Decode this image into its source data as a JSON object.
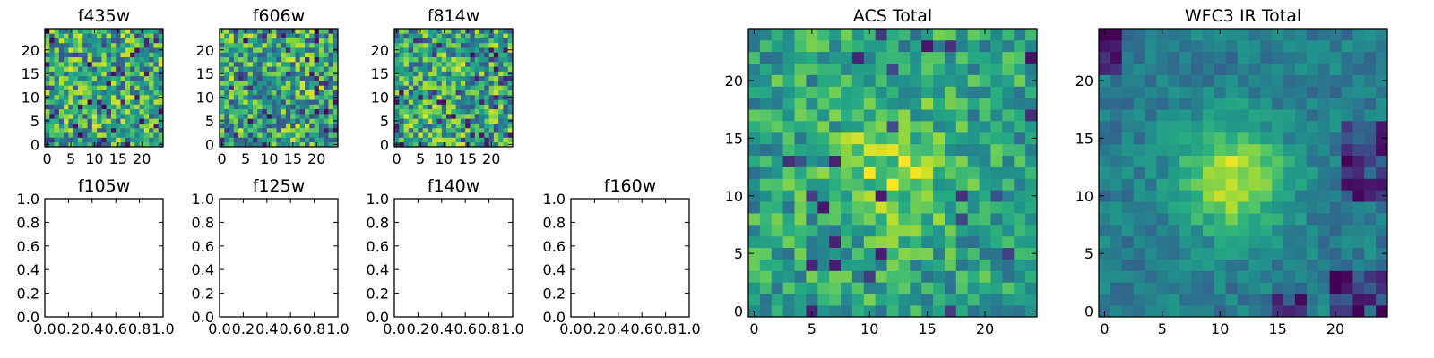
{
  "chart_data": [
    {
      "type": "heatmap",
      "title": "f435w",
      "xticks": [
        "0",
        "5",
        "10",
        "15",
        "20"
      ],
      "yticks": [
        "0",
        "5",
        "10",
        "15",
        "20"
      ],
      "xlim": [
        -0.5,
        24.5
      ],
      "ylim": [
        -0.5,
        24.5
      ],
      "grid_size": 25,
      "colormap": "viridis",
      "value_range": [
        0,
        1
      ],
      "character": "noisy",
      "seed": 11
    },
    {
      "type": "heatmap",
      "title": "f606w",
      "xticks": [
        "0",
        "5",
        "10",
        "15",
        "20"
      ],
      "yticks": [
        "0",
        "5",
        "10",
        "15",
        "20"
      ],
      "xlim": [
        -0.5,
        24.5
      ],
      "ylim": [
        -0.5,
        24.5
      ],
      "grid_size": 25,
      "colormap": "viridis",
      "value_range": [
        0,
        1
      ],
      "character": "noisy",
      "seed": 23
    },
    {
      "type": "heatmap",
      "title": "f814w",
      "xticks": [
        "0",
        "5",
        "10",
        "15",
        "20"
      ],
      "yticks": [
        "0",
        "5",
        "10",
        "15",
        "20"
      ],
      "xlim": [
        -0.5,
        24.5
      ],
      "ylim": [
        -0.5,
        24.5
      ],
      "grid_size": 25,
      "colormap": "viridis",
      "value_range": [
        0,
        1
      ],
      "character": "noisy",
      "seed": 37
    },
    {
      "type": "line",
      "title": "f105w",
      "xticks": [
        "0.0",
        "0.2",
        "0.4",
        "0.6",
        "0.8",
        "1.0"
      ],
      "yticks": [
        "0.0",
        "0.2",
        "0.4",
        "0.6",
        "0.8",
        "1.0"
      ],
      "xlim": [
        0,
        1
      ],
      "ylim": [
        0,
        1
      ],
      "series": []
    },
    {
      "type": "line",
      "title": "f125w",
      "xticks": [
        "0.0",
        "0.2",
        "0.4",
        "0.6",
        "0.8",
        "1.0"
      ],
      "yticks": [
        "0.0",
        "0.2",
        "0.4",
        "0.6",
        "0.8",
        "1.0"
      ],
      "xlim": [
        0,
        1
      ],
      "ylim": [
        0,
        1
      ],
      "series": []
    },
    {
      "type": "line",
      "title": "f140w",
      "xticks": [
        "0.0",
        "0.2",
        "0.4",
        "0.6",
        "0.8",
        "1.0"
      ],
      "yticks": [
        "0.0",
        "0.2",
        "0.4",
        "0.6",
        "0.8",
        "1.0"
      ],
      "xlim": [
        0,
        1
      ],
      "ylim": [
        0,
        1
      ],
      "series": []
    },
    {
      "type": "line",
      "title": "f160w",
      "xticks": [
        "0.0",
        "0.2",
        "0.4",
        "0.6",
        "0.8",
        "1.0"
      ],
      "yticks": [
        "0.0",
        "0.2",
        "0.4",
        "0.6",
        "0.8",
        "1.0"
      ],
      "xlim": [
        0,
        1
      ],
      "ylim": [
        0,
        1
      ],
      "series": []
    },
    {
      "type": "heatmap",
      "title": "ACS Total",
      "xticks": [
        "0",
        "5",
        "10",
        "15",
        "20"
      ],
      "yticks": [
        "0",
        "5",
        "10",
        "15",
        "20"
      ],
      "xlim": [
        -0.5,
        24.5
      ],
      "ylim": [
        -0.5,
        24.5
      ],
      "grid_size": 25,
      "colormap": "viridis",
      "value_range": [
        0,
        1
      ],
      "character": "noisy with faint central concentration near (12, 12)",
      "seed": 53
    },
    {
      "type": "heatmap",
      "title": "WFC3 IR Total",
      "xticks": [
        "0",
        "5",
        "10",
        "15",
        "20"
      ],
      "yticks": [
        "0",
        "5",
        "10",
        "15",
        "20"
      ],
      "xlim": [
        -0.5,
        24.5
      ],
      "ylim": [
        -0.5,
        24.5
      ],
      "grid_size": 25,
      "colormap": "viridis",
      "value_range": [
        0,
        1
      ],
      "character": "smooth source centered near (11, 11)",
      "seed": 71
    }
  ]
}
